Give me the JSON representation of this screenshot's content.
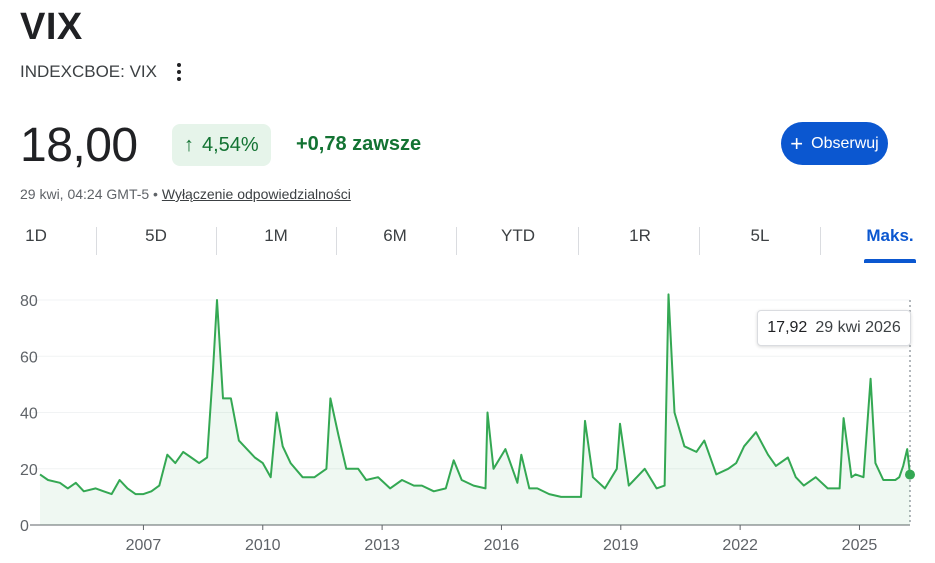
{
  "header": {
    "title": "VIX",
    "exchange": "INDEXCBOE: VIX",
    "price": "18,00",
    "change_pct": "4,54%",
    "change_abs": "+0,78 zawsze",
    "timestamp": "29 kwi, 04:24 GMT-5 •",
    "disclaimer": "Wyłączenie odpowiedzialności",
    "follow_label": "Obserwuj",
    "colors": {
      "positive": "#137333",
      "positive_bg": "#e6f4ea",
      "accent": "#0b57d0"
    }
  },
  "ranges": [
    "1D",
    "5D",
    "1M",
    "6M",
    "YTD",
    "1R",
    "5L",
    "Maks."
  ],
  "active_range": "Maks.",
  "tooltip": {
    "value": "17,92",
    "date": "29 kwi 2026"
  },
  "chart_data": {
    "type": "line",
    "series": [
      {
        "color": "#34a853",
        "points": [
          [
            2004.4,
            18
          ],
          [
            2004.6,
            16
          ],
          [
            2004.9,
            15
          ],
          [
            2005.1,
            13
          ],
          [
            2005.3,
            15
          ],
          [
            2005.5,
            12
          ],
          [
            2005.8,
            13
          ],
          [
            2006.0,
            12
          ],
          [
            2006.2,
            11
          ],
          [
            2006.4,
            16
          ],
          [
            2006.6,
            13
          ],
          [
            2006.8,
            11
          ],
          [
            2007.0,
            11
          ],
          [
            2007.2,
            12
          ],
          [
            2007.4,
            14
          ],
          [
            2007.6,
            25
          ],
          [
            2007.8,
            22
          ],
          [
            2008.0,
            26
          ],
          [
            2008.2,
            24
          ],
          [
            2008.4,
            22
          ],
          [
            2008.6,
            24
          ],
          [
            2008.75,
            55
          ],
          [
            2008.85,
            80
          ],
          [
            2009.0,
            45
          ],
          [
            2009.2,
            45
          ],
          [
            2009.4,
            30
          ],
          [
            2009.6,
            27
          ],
          [
            2009.8,
            24
          ],
          [
            2010.0,
            22
          ],
          [
            2010.2,
            17
          ],
          [
            2010.35,
            40
          ],
          [
            2010.5,
            28
          ],
          [
            2010.7,
            22
          ],
          [
            2011.0,
            17
          ],
          [
            2011.3,
            17
          ],
          [
            2011.6,
            20
          ],
          [
            2011.7,
            45
          ],
          [
            2011.9,
            32
          ],
          [
            2012.1,
            20
          ],
          [
            2012.4,
            20
          ],
          [
            2012.6,
            16
          ],
          [
            2012.9,
            17
          ],
          [
            2013.2,
            13
          ],
          [
            2013.5,
            16
          ],
          [
            2013.8,
            14
          ],
          [
            2014.0,
            14
          ],
          [
            2014.3,
            12
          ],
          [
            2014.6,
            13
          ],
          [
            2014.8,
            23
          ],
          [
            2015.0,
            16
          ],
          [
            2015.3,
            14
          ],
          [
            2015.6,
            13
          ],
          [
            2015.65,
            40
          ],
          [
            2015.8,
            20
          ],
          [
            2016.1,
            27
          ],
          [
            2016.4,
            15
          ],
          [
            2016.5,
            25
          ],
          [
            2016.7,
            13
          ],
          [
            2016.9,
            13
          ],
          [
            2017.2,
            11
          ],
          [
            2017.5,
            10
          ],
          [
            2017.8,
            10
          ],
          [
            2018.0,
            10
          ],
          [
            2018.1,
            37
          ],
          [
            2018.3,
            17
          ],
          [
            2018.6,
            13
          ],
          [
            2018.9,
            20
          ],
          [
            2018.98,
            36
          ],
          [
            2019.2,
            14
          ],
          [
            2019.6,
            20
          ],
          [
            2019.9,
            13
          ],
          [
            2020.1,
            14
          ],
          [
            2020.2,
            82
          ],
          [
            2020.35,
            40
          ],
          [
            2020.6,
            28
          ],
          [
            2020.9,
            26
          ],
          [
            2021.1,
            30
          ],
          [
            2021.4,
            18
          ],
          [
            2021.7,
            20
          ],
          [
            2021.9,
            22
          ],
          [
            2022.1,
            28
          ],
          [
            2022.4,
            33
          ],
          [
            2022.7,
            25
          ],
          [
            2022.9,
            21
          ],
          [
            2023.2,
            24
          ],
          [
            2023.4,
            17
          ],
          [
            2023.6,
            14
          ],
          [
            2023.9,
            17
          ],
          [
            2024.2,
            13
          ],
          [
            2024.5,
            13
          ],
          [
            2024.6,
            38
          ],
          [
            2024.8,
            17
          ],
          [
            2024.9,
            18
          ],
          [
            2025.1,
            17
          ],
          [
            2025.28,
            52
          ],
          [
            2025.4,
            22
          ],
          [
            2025.6,
            16
          ],
          [
            2025.9,
            16
          ],
          [
            2026.0,
            17
          ],
          [
            2026.1,
            21
          ],
          [
            2026.2,
            27
          ],
          [
            2026.27,
            17.92
          ]
        ]
      }
    ],
    "xlim": [
      2004.4,
      2026.27
    ],
    "x_ticks": [
      "2007",
      "2010",
      "2013",
      "2016",
      "2019",
      "2022",
      "2025"
    ],
    "ylim": [
      0,
      80
    ],
    "y_ticks": [
      "0",
      "20",
      "40",
      "60",
      "80"
    ],
    "grid": true
  }
}
